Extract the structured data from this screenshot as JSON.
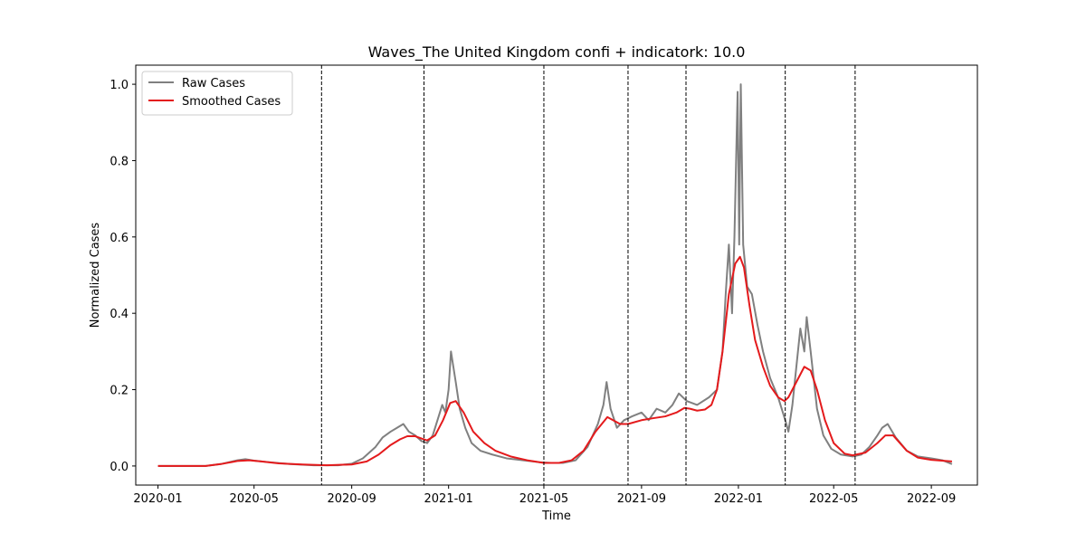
{
  "chart_data": {
    "type": "line",
    "title": "Waves_The United Kingdom confi + indicatork: 10.0",
    "xlabel": "Time",
    "ylabel": "Normalized Cases",
    "xlim": [
      "2019-12-04",
      "2022-10-29"
    ],
    "ylim": [
      -0.05,
      1.05
    ],
    "x_ticks": [
      "2020-01",
      "2020-05",
      "2020-09",
      "2021-01",
      "2021-05",
      "2021-09",
      "2022-01",
      "2022-05",
      "2022-09"
    ],
    "y_ticks": [
      0.0,
      0.2,
      0.4,
      0.6,
      0.8,
      1.0
    ],
    "y_tick_labels": [
      "0.0",
      "0.2",
      "0.4",
      "0.6",
      "0.8",
      "1.0"
    ],
    "grid": false,
    "legend": {
      "placement": "top-left"
    },
    "series": [
      {
        "name": "Raw Cases",
        "color": "#808080",
        "x": [
          "2020-01-01",
          "2020-02-01",
          "2020-03-01",
          "2020-03-20",
          "2020-04-10",
          "2020-04-20",
          "2020-05-01",
          "2020-05-20",
          "2020-06-15",
          "2020-07-15",
          "2020-08-15",
          "2020-09-01",
          "2020-09-15",
          "2020-10-01",
          "2020-10-10",
          "2020-10-20",
          "2020-10-28",
          "2020-11-05",
          "2020-11-12",
          "2020-11-20",
          "2020-11-28",
          "2020-12-05",
          "2020-12-12",
          "2020-12-18",
          "2020-12-24",
          "2020-12-28",
          "2021-01-01",
          "2021-01-04",
          "2021-01-07",
          "2021-01-10",
          "2021-01-15",
          "2021-01-22",
          "2021-01-30",
          "2021-02-10",
          "2021-02-25",
          "2021-03-15",
          "2021-04-05",
          "2021-04-25",
          "2021-05-10",
          "2021-05-25",
          "2021-06-10",
          "2021-06-25",
          "2021-07-08",
          "2021-07-15",
          "2021-07-19",
          "2021-07-24",
          "2021-08-01",
          "2021-08-10",
          "2021-08-20",
          "2021-09-01",
          "2021-09-10",
          "2021-09-20",
          "2021-10-01",
          "2021-10-10",
          "2021-10-18",
          "2021-10-28",
          "2021-11-10",
          "2021-11-25",
          "2021-12-05",
          "2021-12-12",
          "2021-12-16",
          "2021-12-20",
          "2021-12-24",
          "2021-12-27",
          "2021-12-31",
          "2022-01-02",
          "2022-01-04",
          "2022-01-07",
          "2022-01-12",
          "2022-01-18",
          "2022-01-25",
          "2022-02-01",
          "2022-02-10",
          "2022-02-20",
          "2022-03-01",
          "2022-03-05",
          "2022-03-10",
          "2022-03-15",
          "2022-03-20",
          "2022-03-25",
          "2022-03-28",
          "2022-04-02",
          "2022-04-10",
          "2022-04-18",
          "2022-04-28",
          "2022-05-10",
          "2022-05-25",
          "2022-06-05",
          "2022-06-15",
          "2022-06-25",
          "2022-07-01",
          "2022-07-08",
          "2022-07-18",
          "2022-08-01",
          "2022-08-15",
          "2022-09-01",
          "2022-09-15",
          "2022-09-27"
        ],
        "values": [
          0.0,
          0.0,
          0.0,
          0.005,
          0.015,
          0.018,
          0.014,
          0.01,
          0.005,
          0.002,
          0.002,
          0.006,
          0.02,
          0.05,
          0.075,
          0.09,
          0.1,
          0.11,
          0.09,
          0.08,
          0.065,
          0.06,
          0.08,
          0.12,
          0.16,
          0.14,
          0.2,
          0.3,
          0.26,
          0.22,
          0.15,
          0.1,
          0.06,
          0.04,
          0.03,
          0.02,
          0.015,
          0.01,
          0.008,
          0.008,
          0.015,
          0.05,
          0.11,
          0.16,
          0.22,
          0.15,
          0.1,
          0.12,
          0.13,
          0.14,
          0.12,
          0.15,
          0.14,
          0.16,
          0.19,
          0.17,
          0.16,
          0.18,
          0.2,
          0.3,
          0.45,
          0.58,
          0.4,
          0.6,
          0.98,
          0.58,
          1.0,
          0.58,
          0.47,
          0.45,
          0.37,
          0.3,
          0.23,
          0.18,
          0.12,
          0.09,
          0.16,
          0.26,
          0.36,
          0.3,
          0.39,
          0.3,
          0.15,
          0.08,
          0.045,
          0.03,
          0.025,
          0.03,
          0.05,
          0.08,
          0.1,
          0.11,
          0.075,
          0.04,
          0.025,
          0.02,
          0.015,
          0.005
        ]
      },
      {
        "name": "Smoothed Cases",
        "color": "#e41a1c",
        "x": [
          "2020-01-01",
          "2020-02-01",
          "2020-03-01",
          "2020-03-20",
          "2020-04-10",
          "2020-04-25",
          "2020-05-10",
          "2020-06-01",
          "2020-07-01",
          "2020-08-01",
          "2020-09-01",
          "2020-09-20",
          "2020-10-05",
          "2020-10-20",
          "2020-11-01",
          "2020-11-10",
          "2020-11-20",
          "2020-11-28",
          "2020-12-05",
          "2020-12-15",
          "2020-12-25",
          "2021-01-03",
          "2021-01-10",
          "2021-01-20",
          "2021-02-01",
          "2021-02-15",
          "2021-03-01",
          "2021-03-20",
          "2021-04-10",
          "2021-05-01",
          "2021-05-20",
          "2021-06-05",
          "2021-06-20",
          "2021-07-05",
          "2021-07-20",
          "2021-08-05",
          "2021-08-15",
          "2021-09-01",
          "2021-09-15",
          "2021-10-01",
          "2021-10-15",
          "2021-10-25",
          "2021-11-01",
          "2021-11-10",
          "2021-11-20",
          "2021-11-28",
          "2021-12-05",
          "2021-12-12",
          "2021-12-20",
          "2021-12-28",
          "2022-01-03",
          "2022-01-08",
          "2022-01-15",
          "2022-01-22",
          "2022-02-01",
          "2022-02-10",
          "2022-02-20",
          "2022-02-28",
          "2022-03-05",
          "2022-03-15",
          "2022-03-25",
          "2022-04-02",
          "2022-04-10",
          "2022-04-20",
          "2022-05-01",
          "2022-05-15",
          "2022-05-25",
          "2022-06-10",
          "2022-06-25",
          "2022-07-05",
          "2022-07-15",
          "2022-08-01",
          "2022-08-15",
          "2022-09-01",
          "2022-09-27"
        ],
        "values": [
          0.0,
          0.0,
          0.0,
          0.005,
          0.013,
          0.015,
          0.012,
          0.007,
          0.004,
          0.002,
          0.004,
          0.012,
          0.03,
          0.055,
          0.07,
          0.078,
          0.078,
          0.072,
          0.067,
          0.08,
          0.12,
          0.165,
          0.17,
          0.14,
          0.09,
          0.06,
          0.04,
          0.025,
          0.015,
          0.008,
          0.008,
          0.015,
          0.04,
          0.09,
          0.128,
          0.11,
          0.11,
          0.12,
          0.125,
          0.13,
          0.14,
          0.152,
          0.15,
          0.145,
          0.148,
          0.16,
          0.2,
          0.3,
          0.45,
          0.53,
          0.548,
          0.52,
          0.42,
          0.33,
          0.26,
          0.21,
          0.18,
          0.17,
          0.18,
          0.22,
          0.26,
          0.25,
          0.2,
          0.12,
          0.06,
          0.032,
          0.028,
          0.035,
          0.06,
          0.08,
          0.08,
          0.04,
          0.022,
          0.016,
          0.012
        ]
      }
    ],
    "vlines": [
      "2020-07-25",
      "2020-12-01",
      "2021-05-01",
      "2021-08-15",
      "2021-10-27",
      "2022-03-01",
      "2022-05-28"
    ]
  }
}
